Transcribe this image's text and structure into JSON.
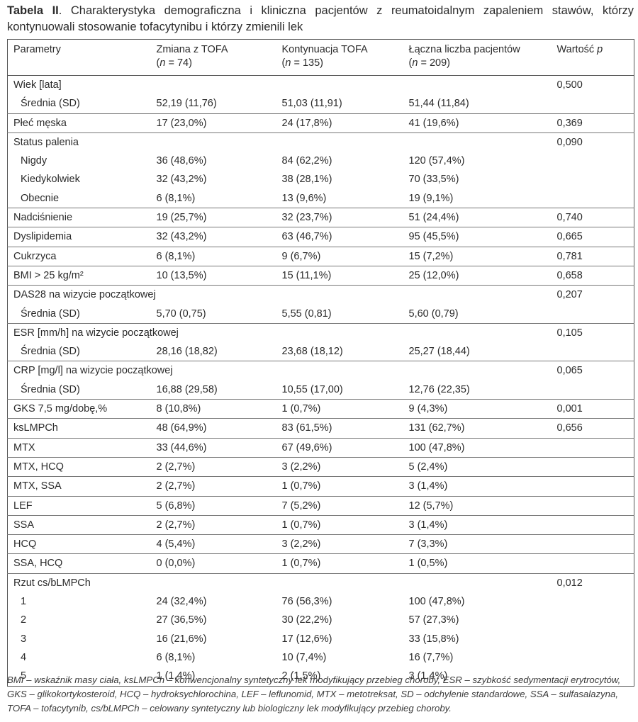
{
  "caption": {
    "label": "Tabela II",
    "text": ". Charakterystyka demograficzna i kliniczna pacjentów z reumatoidalnym zapaleniem stawów, którzy kontynuowali stosowanie tofacytynibu i którzy zmienili lek"
  },
  "table": {
    "header": [
      [
        [
          {
            "text": "Parametry"
          }
        ]
      ],
      [
        [
          {
            "text": "Zmiana z TOFA"
          }
        ],
        [
          {
            "text": "("
          },
          {
            "text": "n",
            "italic": true
          },
          {
            "text": " = 74)"
          }
        ]
      ],
      [
        [
          {
            "text": "Kontynuacja TOFA"
          }
        ],
        [
          {
            "text": "("
          },
          {
            "text": "n",
            "italic": true
          },
          {
            "text": " = 135)"
          }
        ]
      ],
      [
        [
          {
            "text": "Łączna liczba pacjentów"
          }
        ],
        [
          {
            "text": "("
          },
          {
            "text": "n",
            "italic": true
          },
          {
            "text": " = 209)"
          }
        ]
      ],
      [
        [
          {
            "text": "Wartość "
          },
          {
            "text": "p",
            "italic": true
          }
        ]
      ]
    ],
    "groups": [
      [
        [
          "Wiek [lata]",
          null,
          null,
          null,
          "0,500"
        ],
        [
          "Średnia (SD)",
          "52,19 (11,76)",
          "51,03 (11,91)",
          "51,44 (11,84)",
          null
        ]
      ],
      [
        [
          "Płeć męska",
          "17 (23,0%)",
          "24 (17,8%)",
          "41 (19,6%)",
          "0,369"
        ]
      ],
      [
        [
          "Status palenia",
          null,
          null,
          null,
          "0,090"
        ],
        [
          "Nigdy",
          "36 (48,6%)",
          "84 (62,2%)",
          "120 (57,4%)",
          null
        ],
        [
          "Kiedykolwiek",
          "32 (43,2%)",
          "38 (28,1%)",
          "70 (33,5%)",
          null
        ],
        [
          "Obecnie",
          "6 (8,1%)",
          "13 (9,6%)",
          "19 (9,1%)",
          null
        ]
      ],
      [
        [
          "Nadciśnienie",
          "19 (25,7%)",
          "32 (23,7%)",
          "51 (24,4%)",
          "0,740"
        ]
      ],
      [
        [
          "Dyslipidemia",
          "32 (43,2%)",
          "63 (46,7%)",
          "95 (45,5%)",
          "0,665"
        ]
      ],
      [
        [
          "Cukrzyca",
          "6 (8,1%)",
          "9 (6,7%)",
          "15 (7,2%)",
          "0,781"
        ]
      ],
      [
        [
          "BMI > 25 kg/m²",
          "10 (13,5%)",
          "15 (11,1%)",
          "25 (12,0%)",
          "0,658"
        ]
      ],
      [
        [
          "DAS28 na wizycie początkowej",
          null,
          null,
          null,
          "0,207"
        ],
        [
          "Średnia (SD)",
          "5,70 (0,75)",
          "5,55 (0,81)",
          "5,60 (0,79)",
          null
        ]
      ],
      [
        [
          "ESR [mm/h] na wizycie początkowej",
          null,
          null,
          null,
          "0,105"
        ],
        [
          "Średnia (SD)",
          "28,16 (18,82)",
          "23,68 (18,12)",
          "25,27 (18,44)",
          null
        ]
      ],
      [
        [
          "CRP [mg/l] na wizycie początkowej",
          null,
          null,
          null,
          "0,065"
        ],
        [
          "Średnia (SD)",
          "16,88 (29,58)",
          "10,55 (17,00)",
          "12,76 (22,35)",
          null
        ]
      ],
      [
        [
          "GKS 7,5 mg/dobę,%",
          "8 (10,8%)",
          "1 (0,7%)",
          "9 (4,3%)",
          "0,001"
        ]
      ],
      [
        [
          "ksLMPCh",
          "48 (64,9%)",
          "83 (61,5%)",
          "131 (62,7%)",
          "0,656"
        ]
      ],
      [
        [
          "MTX",
          "33 (44,6%)",
          "67 (49,6%)",
          "100 (47,8%)",
          null
        ]
      ],
      [
        [
          "MTX, HCQ",
          "2 (2,7%)",
          "3 (2,2%)",
          "5 (2,4%)",
          null
        ]
      ],
      [
        [
          "MTX, SSA",
          "2 (2,7%)",
          "1 (0,7%)",
          "3 (1,4%)",
          null
        ]
      ],
      [
        [
          "LEF",
          "5 (6,8%)",
          "7 (5,2%)",
          "12 (5,7%)",
          null
        ]
      ],
      [
        [
          "SSA",
          "2 (2,7%)",
          "1 (0,7%)",
          "3 (1,4%)",
          null
        ]
      ],
      [
        [
          "HCQ",
          "4 (5,4%)",
          "3 (2,2%)",
          "7 (3,3%)",
          null
        ]
      ],
      [
        [
          "SSA, HCQ",
          "0 (0,0%)",
          "1 (0,7%)",
          "1 (0,5%)",
          null
        ]
      ],
      [
        [
          "Rzut cs/bLMPCh",
          null,
          null,
          null,
          "0,012"
        ],
        [
          "1",
          "24 (32,4%)",
          "76 (56,3%)",
          "100 (47,8%)",
          null
        ],
        [
          "2",
          "27 (36,5%)",
          "30 (22,2%)",
          "57 (27,3%)",
          null
        ],
        [
          "3",
          "16 (21,6%)",
          "17 (12,6%)",
          "33 (15,8%)",
          null
        ],
        [
          "4",
          "6 (8,1%)",
          "10 (7,4%)",
          "16 (7,7%)",
          null
        ],
        [
          "5",
          "1 (1,4%)",
          "2 (1,5%)",
          "3 (1,4%)",
          null
        ]
      ]
    ]
  },
  "footnote": "BMI – wskaźnik masy ciała, ksLMPCh – konwencjonalny syntetyczny lek modyfikujący przebieg choroby, ESR – szybkość sedymentacji erytrocytów, GKS – glikokortykosteroid, HCQ – hydroksychlorochina, LEF – leflunomid, MTX – metotreksat, SD – odchylenie standardowe, SSA – sulfasalazyna, TOFA – tofacytynib, cs/bLMPCh – celowany syntetyczny lub biologiczny lek modyfikujący przebieg choroby."
}
